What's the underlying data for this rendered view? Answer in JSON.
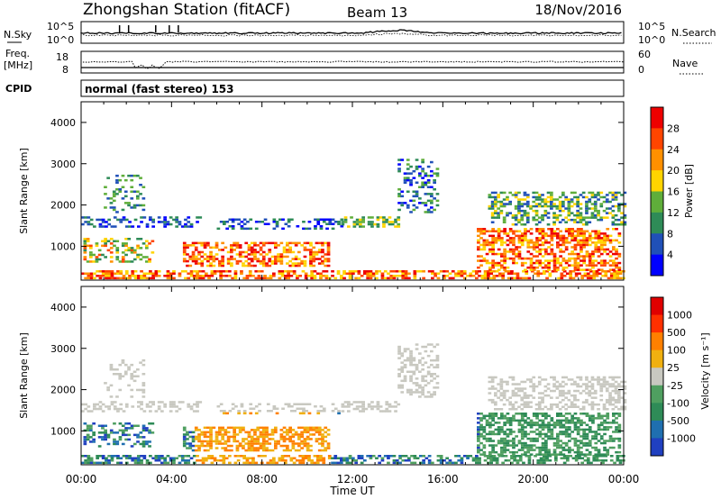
{
  "header": {
    "station": "Zhongshan Station (fitACF)",
    "beam": "Beam 13",
    "date": "18/Nov/2016"
  },
  "params": {
    "nsky_label": "N.Sky",
    "nsky_ticks": [
      "10^5",
      "10^0"
    ],
    "nsearch_label": "N.Search",
    "nsearch_ticks": [
      "10^5",
      "10^0"
    ],
    "freq_label_1": "Freq.",
    "freq_label_2": "[MHz]",
    "freq_ticks": [
      "18",
      "8"
    ],
    "nave_label": "Nave",
    "nave_ticks": [
      "60",
      "0"
    ],
    "cpid_label": "CPID",
    "cpid_value": "normal (fast stereo) 153"
  },
  "chart_data": [
    {
      "type": "heatmap",
      "name": "power",
      "ylabel": "Slant Range [km]",
      "yticks": [
        "4000",
        "3000",
        "2000",
        "1000"
      ],
      "ylim": [
        180,
        4500
      ],
      "colorbar_label": "Power [dB]",
      "colorbar_ticks": [
        "28",
        "24",
        "20",
        "16",
        "12",
        "8",
        "4"
      ],
      "colorbar_range": [
        0,
        32
      ],
      "colors": [
        "#0000ff",
        "#2050b8",
        "#2e8b57",
        "#5fae3a",
        "#ffd400",
        "#ff9000",
        "#ff4500",
        "#ee0000"
      ]
    },
    {
      "type": "heatmap",
      "name": "velocity",
      "ylabel": "Slant Range [km]",
      "yticks": [
        "4000",
        "3000",
        "2000",
        "1000"
      ],
      "ylim": [
        180,
        4500
      ],
      "colorbar_label": "Velocity [m s⁻¹]",
      "colorbar_ticks": [
        "1000",
        "500",
        "100",
        "25",
        "-25",
        "-100",
        "-500",
        "-1000"
      ],
      "colors": [
        "#2040c0",
        "#1f6fb0",
        "#2e8b57",
        "#4f9f60",
        "#c8c8c0",
        "#f0b010",
        "#ff8000",
        "#ff3000",
        "#e00000"
      ]
    }
  ],
  "xaxis": {
    "label": "Time UT",
    "ticks": [
      "00:00",
      "04:00",
      "08:00",
      "12:00",
      "16:00",
      "20:00",
      "00:00"
    ]
  }
}
